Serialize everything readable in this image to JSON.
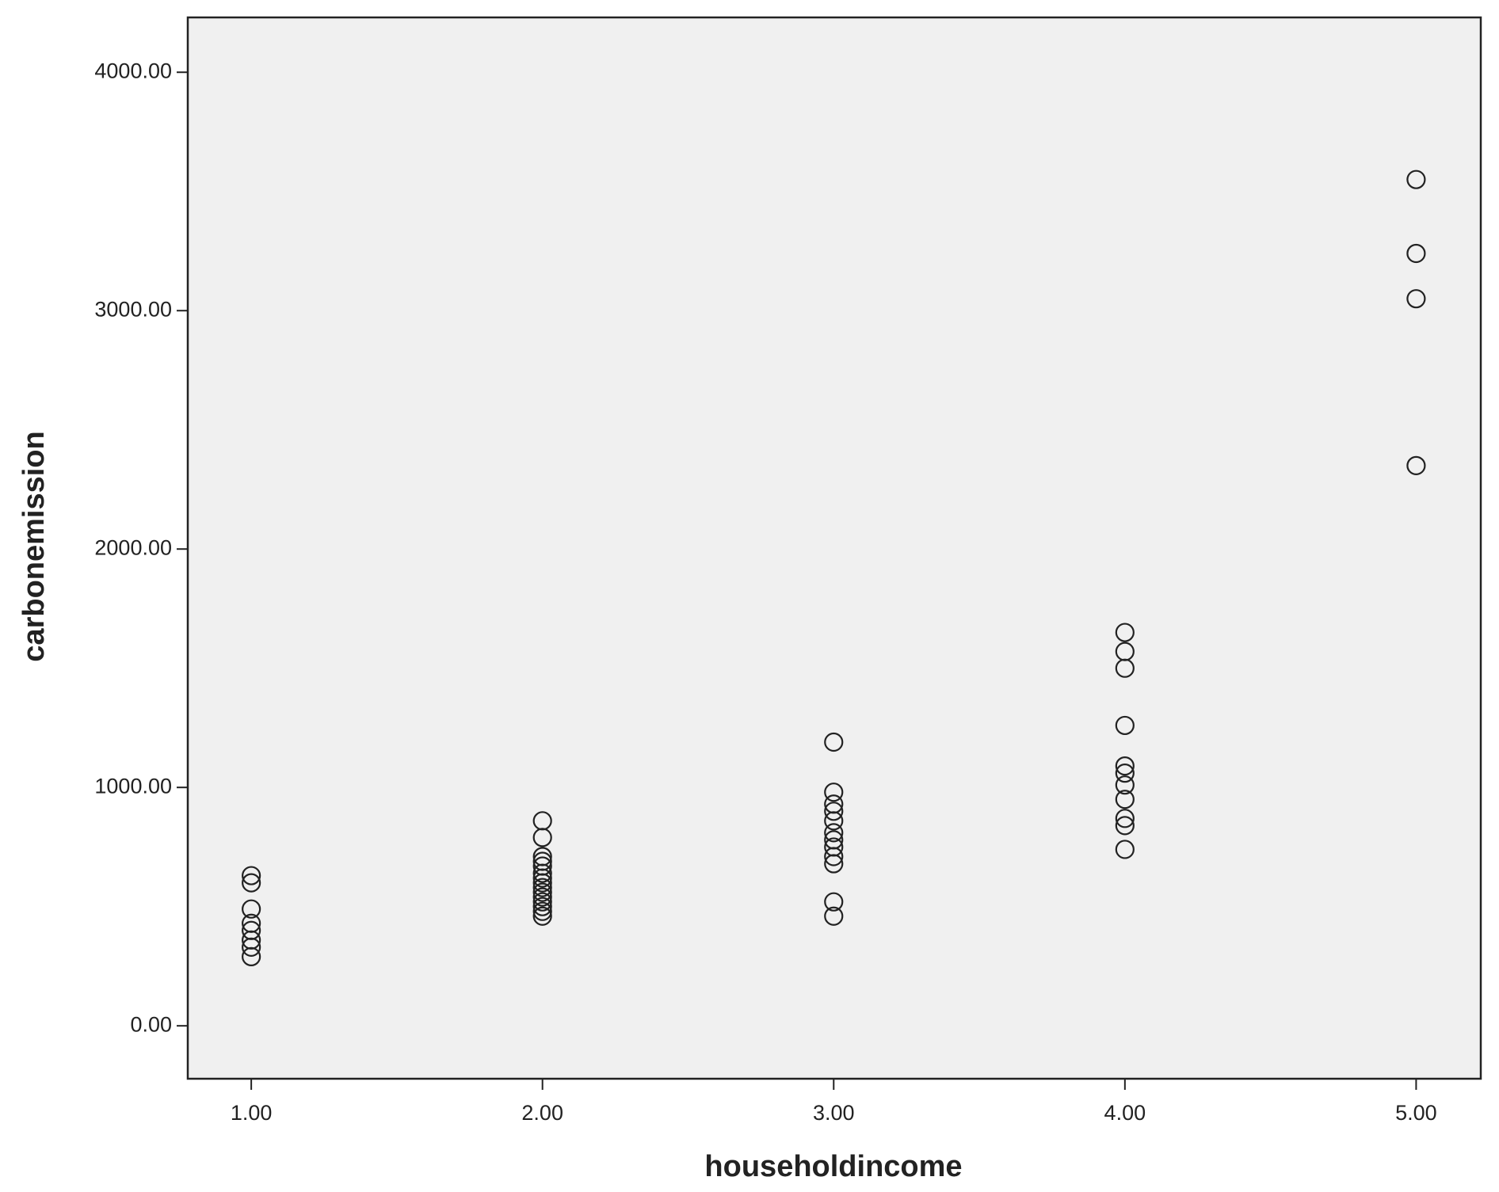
{
  "chart_data": {
    "type": "scatter",
    "x_label": "householdincome",
    "y_label": "carbonemission",
    "x": [
      1,
      1,
      1,
      1,
      1,
      1,
      1,
      1,
      2,
      2,
      2,
      2,
      2,
      2,
      2,
      2,
      2,
      2,
      2,
      2,
      2,
      2,
      2,
      3,
      3,
      3,
      3,
      3,
      3,
      3,
      3,
      3,
      3,
      3,
      3,
      4,
      4,
      4,
      4,
      4,
      4,
      4,
      4,
      4,
      4,
      4,
      5,
      5,
      5,
      5
    ],
    "values": [
      630,
      600,
      490,
      430,
      400,
      360,
      330,
      290,
      860,
      790,
      710,
      690,
      670,
      640,
      620,
      600,
      580,
      560,
      540,
      520,
      500,
      480,
      460,
      1190,
      980,
      930,
      900,
      860,
      810,
      780,
      750,
      710,
      680,
      520,
      460,
      1650,
      1570,
      1500,
      1260,
      1090,
      1060,
      1010,
      950,
      870,
      840,
      740,
      3550,
      3240,
      3050,
      2350
    ],
    "marker_color": "#222222",
    "plot_background": "#f0f0f0",
    "xlim": [
      0.782,
      5.222
    ],
    "ylim": [
      -222,
      4230
    ],
    "xticks": [
      {
        "value": 1,
        "label": "1.00"
      },
      {
        "value": 2,
        "label": "2.00"
      },
      {
        "value": 3,
        "label": "3.00"
      },
      {
        "value": 4,
        "label": "4.00"
      },
      {
        "value": 5,
        "label": "5.00"
      }
    ],
    "yticks": [
      {
        "value": 0,
        "label": "0.00"
      },
      {
        "value": 1000,
        "label": "1000.00"
      },
      {
        "value": 2000,
        "label": "2000.00"
      },
      {
        "value": 3000,
        "label": "3000.00"
      },
      {
        "value": 4000,
        "label": "4000.00"
      }
    ]
  }
}
